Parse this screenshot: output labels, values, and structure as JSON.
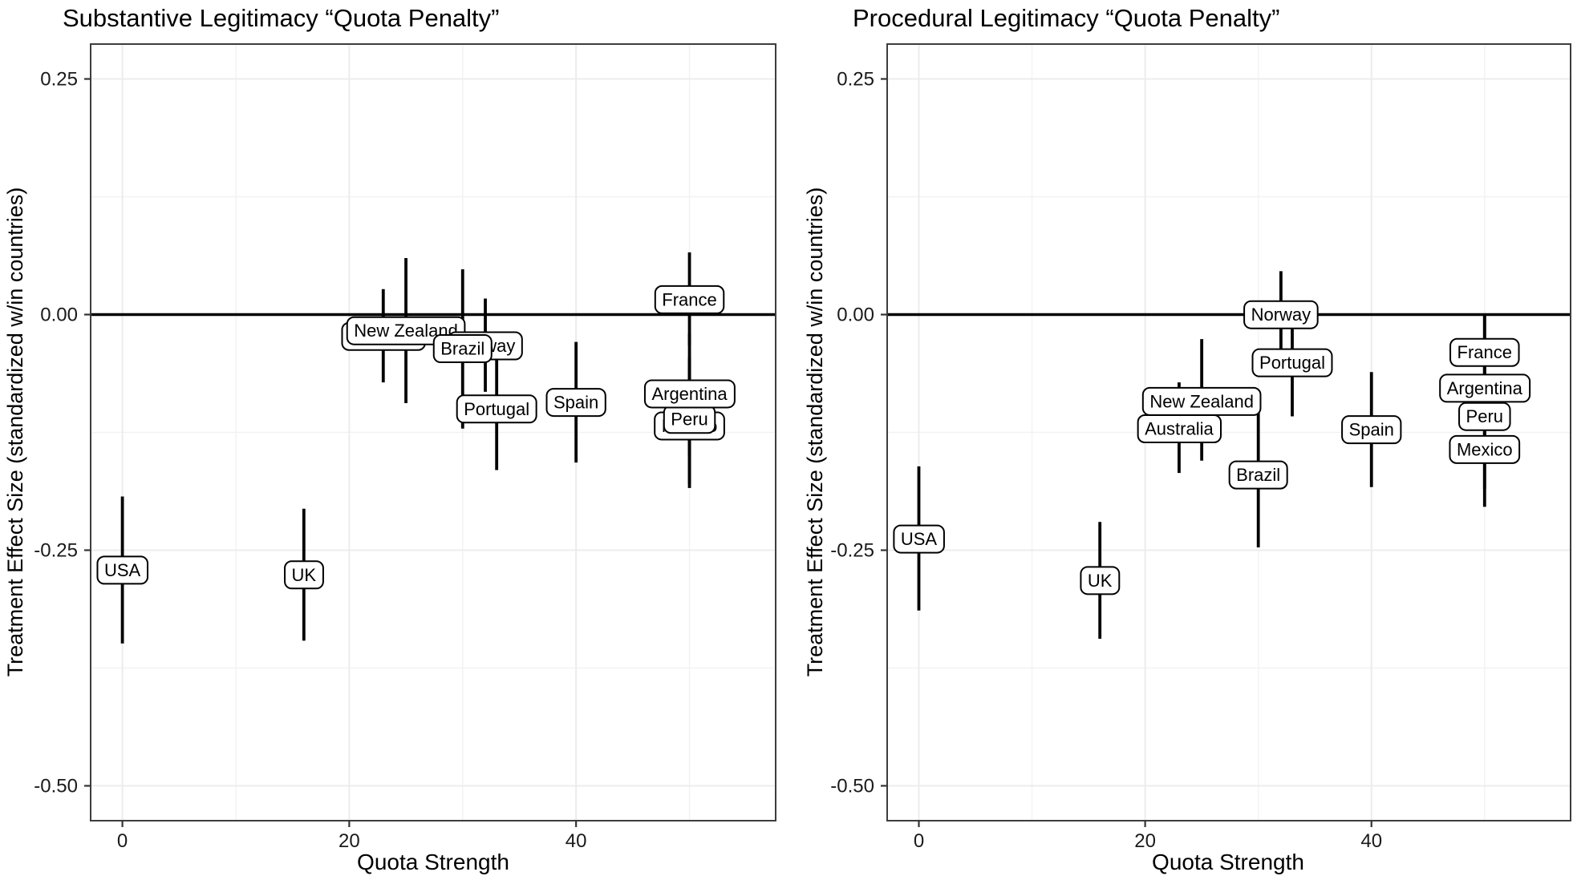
{
  "figure": {
    "background": "#ffffff",
    "text_color": "#000000",
    "tick_text_color": "#1a1a1a",
    "panel_bg": "#ffffff",
    "panel_border_color": "#3d3d3d",
    "grid_major_color": "#ececec",
    "grid_minor_color": "#f2f2f2",
    "zero_line_color": "#000000",
    "bar_color": "#000000",
    "label_box_fill": "#ffffff",
    "label_box_border": "#000000"
  },
  "chart_data": [
    {
      "type": "scatter",
      "title": "Substantive Legitimacy “Quota Penalty”",
      "xlabel": "Quota Strength",
      "ylabel": "Treatment Effect Size (standardized w/in countries)",
      "xlim": [
        -2.8,
        57.6
      ],
      "ylim": [
        -0.537,
        0.287
      ],
      "x_ticks": [
        0,
        20,
        40
      ],
      "x_tick_labels": [
        "0",
        "20",
        "40"
      ],
      "x_minor": [
        10,
        30,
        50
      ],
      "y_ticks": [
        0.25,
        0.0,
        -0.25,
        -0.5
      ],
      "y_tick_labels": [
        "0.25",
        "0.00",
        "-0.25",
        "-0.50"
      ],
      "y_minor": [
        0.125,
        -0.125,
        -0.375
      ],
      "ref_line_y": 0,
      "grid": true,
      "points": [
        {
          "country": "Australia",
          "x": 23,
          "est": -0.023,
          "lo": -0.072,
          "hi": 0.027,
          "label_behind": true
        },
        {
          "country": "New Zealand",
          "x": 25,
          "est": -0.017,
          "lo": -0.094,
          "hi": 0.06
        },
        {
          "country": "Norway",
          "x": 32,
          "est": -0.033,
          "lo": -0.082,
          "hi": 0.017,
          "label_behind": true
        },
        {
          "country": "Brazil",
          "x": 30,
          "est": -0.036,
          "lo": -0.121,
          "hi": 0.048
        },
        {
          "country": "Mexico",
          "x": 50,
          "est": -0.118,
          "lo": -0.184,
          "hi": -0.05,
          "label_behind": true
        },
        {
          "country": "Peru",
          "x": 50,
          "est": -0.111,
          "lo": -0.18,
          "hi": -0.045
        },
        {
          "country": "USA",
          "x": 0,
          "est": -0.271,
          "lo": -0.349,
          "hi": -0.193
        },
        {
          "country": "UK",
          "x": 16,
          "est": -0.276,
          "lo": -0.346,
          "hi": -0.206
        },
        {
          "country": "Portugal",
          "x": 33,
          "est": -0.1,
          "lo": -0.165,
          "hi": -0.036
        },
        {
          "country": "Spain",
          "x": 40,
          "est": -0.093,
          "lo": -0.157,
          "hi": -0.029
        },
        {
          "country": "France",
          "x": 50,
          "est": 0.016,
          "lo": -0.033,
          "hi": 0.066
        },
        {
          "country": "Argentina",
          "x": 50,
          "est": -0.084,
          "lo": -0.15,
          "hi": -0.02
        }
      ]
    },
    {
      "type": "scatter",
      "title": "Procedural Legitimacy “Quota Penalty”",
      "xlabel": "Quota Strength",
      "ylabel": "Treatment Effect Size (standardized w/in countries)",
      "xlim": [
        -2.8,
        57.6
      ],
      "ylim": [
        -0.537,
        0.287
      ],
      "x_ticks": [
        0,
        20,
        40
      ],
      "x_tick_labels": [
        "0",
        "20",
        "40"
      ],
      "x_minor": [
        10,
        30,
        50
      ],
      "y_ticks": [
        0.25,
        0.0,
        -0.25,
        -0.5
      ],
      "y_tick_labels": [
        "0.25",
        "0.00",
        "-0.25",
        "-0.50"
      ],
      "y_minor": [
        0.125,
        -0.125,
        -0.375
      ],
      "ref_line_y": 0,
      "grid": true,
      "points": [
        {
          "country": "USA",
          "x": 0,
          "est": -0.238,
          "lo": -0.314,
          "hi": -0.161
        },
        {
          "country": "UK",
          "x": 16,
          "est": -0.282,
          "lo": -0.344,
          "hi": -0.22
        },
        {
          "country": "Australia",
          "x": 23,
          "est": -0.121,
          "lo": -0.168,
          "hi": -0.072
        },
        {
          "country": "New Zealand",
          "x": 25,
          "est": -0.092,
          "lo": -0.155,
          "hi": -0.026
        },
        {
          "country": "Brazil",
          "x": 30,
          "est": -0.17,
          "lo": -0.247,
          "hi": -0.091
        },
        {
          "country": "Norway",
          "x": 32,
          "est": 0.0,
          "lo": -0.038,
          "hi": 0.046
        },
        {
          "country": "Portugal",
          "x": 33,
          "est": -0.051,
          "lo": -0.108,
          "hi": 0.006
        },
        {
          "country": "Spain",
          "x": 40,
          "est": -0.122,
          "lo": -0.183,
          "hi": -0.061
        },
        {
          "country": "France",
          "x": 50,
          "est": -0.04,
          "lo": -0.08,
          "hi": 0.0
        },
        {
          "country": "Argentina",
          "x": 50,
          "est": -0.078,
          "lo": -0.155,
          "hi": 0.0
        },
        {
          "country": "Peru",
          "x": 50,
          "est": -0.108,
          "lo": -0.185,
          "hi": -0.03
        },
        {
          "country": "Mexico",
          "x": 50,
          "est": -0.143,
          "lo": -0.204,
          "hi": -0.082
        }
      ]
    }
  ]
}
